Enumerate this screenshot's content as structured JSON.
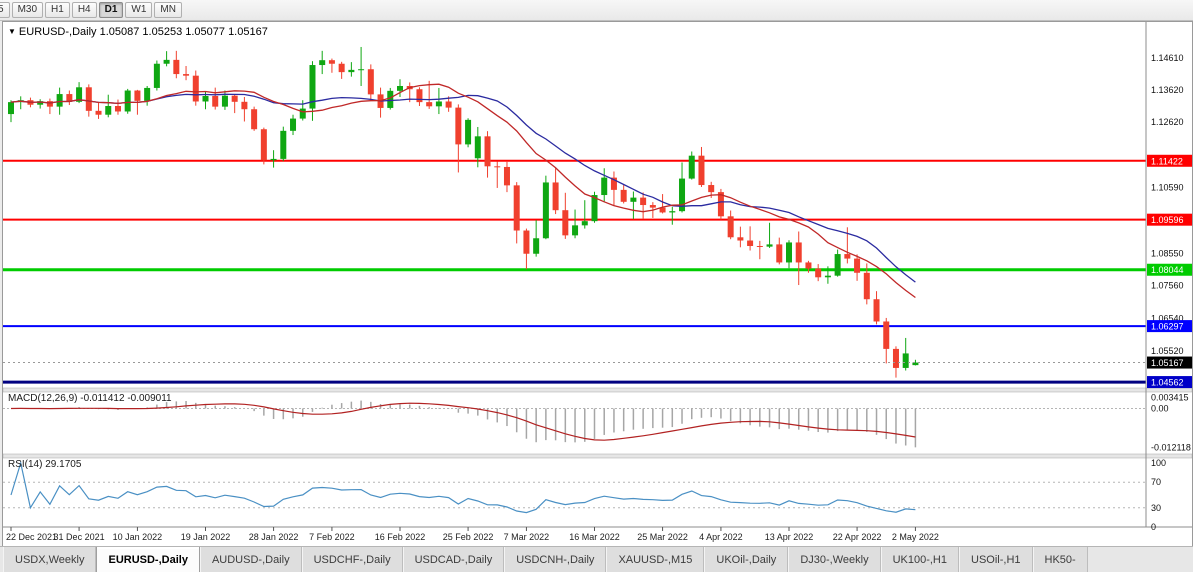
{
  "toolbar": {
    "timeframes": [
      "5",
      "M30",
      "H1",
      "H4",
      "D1",
      "W1",
      "MN"
    ],
    "active_timeframe": "D1"
  },
  "icons": {
    "dropdown": "▼"
  },
  "chart": {
    "symbol": "EURUSD-,Daily",
    "ohlc": "1.05087 1.05253 1.05077 1.05167"
  },
  "chart_data": {
    "type": "candlestick",
    "symbol": "EURUSD",
    "timeframe": "Daily",
    "ylim": [
      1.0444,
      1.156
    ],
    "y_ticks": [
      "1.14610",
      "1.13620",
      "1.12620",
      "1.10590",
      "1.08550",
      "1.07560",
      "1.06540",
      "1.05520"
    ],
    "x_ticks": [
      {
        "i": 0,
        "label": "22 Dec 2021"
      },
      {
        "i": 7,
        "label": "31 Dec 2021"
      },
      {
        "i": 13,
        "label": "10 Jan 2022"
      },
      {
        "i": 20,
        "label": "19 Jan 2022"
      },
      {
        "i": 27,
        "label": "28 Jan 2022"
      },
      {
        "i": 33,
        "label": "7 Feb 2022"
      },
      {
        "i": 40,
        "label": "16 Feb 2022"
      },
      {
        "i": 47,
        "label": "25 Feb 2022"
      },
      {
        "i": 53,
        "label": "7 Mar 2022"
      },
      {
        "i": 60,
        "label": "16 Mar 2022"
      },
      {
        "i": 67,
        "label": "25 Mar 2022"
      },
      {
        "i": 73,
        "label": "4 Apr 2022"
      },
      {
        "i": 80,
        "label": "13 Apr 2022"
      },
      {
        "i": 87,
        "label": "22 Apr 2022"
      },
      {
        "i": 93,
        "label": "2 May 2022"
      }
    ],
    "candles": [
      [
        1.1287,
        1.133,
        1.1262,
        1.1324
      ],
      [
        1.1324,
        1.1342,
        1.1302,
        1.133
      ],
      [
        1.133,
        1.1338,
        1.1308,
        1.1316
      ],
      [
        1.1316,
        1.1333,
        1.1304,
        1.1327
      ],
      [
        1.1327,
        1.1335,
        1.1287,
        1.131
      ],
      [
        1.131,
        1.1369,
        1.1285,
        1.1349
      ],
      [
        1.1349,
        1.136,
        1.1315,
        1.1325
      ],
      [
        1.1325,
        1.1386,
        1.1321,
        1.137
      ],
      [
        1.137,
        1.1379,
        1.1279,
        1.1297
      ],
      [
        1.1297,
        1.1323,
        1.1272,
        1.1285
      ],
      [
        1.1285,
        1.1347,
        1.1277,
        1.1312
      ],
      [
        1.1312,
        1.1332,
        1.1285,
        1.1295
      ],
      [
        1.1295,
        1.1365,
        1.1288,
        1.136
      ],
      [
        1.136,
        1.1362,
        1.1285,
        1.1328
      ],
      [
        1.1328,
        1.1374,
        1.1313,
        1.1368
      ],
      [
        1.1368,
        1.1453,
        1.136,
        1.1443
      ],
      [
        1.1443,
        1.1482,
        1.1435,
        1.1455
      ],
      [
        1.1455,
        1.1483,
        1.1398,
        1.1411
      ],
      [
        1.1411,
        1.1436,
        1.1392,
        1.1406
      ],
      [
        1.1406,
        1.1422,
        1.1313,
        1.1326
      ],
      [
        1.1326,
        1.1357,
        1.1302,
        1.1343
      ],
      [
        1.1343,
        1.1369,
        1.1301,
        1.131
      ],
      [
        1.131,
        1.136,
        1.13,
        1.1344
      ],
      [
        1.1344,
        1.1349,
        1.129,
        1.1325
      ],
      [
        1.1325,
        1.134,
        1.1264,
        1.1302
      ],
      [
        1.1302,
        1.131,
        1.1235,
        1.124
      ],
      [
        1.124,
        1.1245,
        1.1131,
        1.1144
      ],
      [
        1.1144,
        1.1175,
        1.1121,
        1.1148
      ],
      [
        1.1148,
        1.1248,
        1.1141,
        1.1235
      ],
      [
        1.1235,
        1.1285,
        1.1222,
        1.1273
      ],
      [
        1.1273,
        1.133,
        1.1267,
        1.1304
      ],
      [
        1.1304,
        1.1451,
        1.1266,
        1.1439
      ],
      [
        1.1439,
        1.1483,
        1.1411,
        1.1454
      ],
      [
        1.1454,
        1.1459,
        1.1415,
        1.1443
      ],
      [
        1.1443,
        1.1449,
        1.1396,
        1.1417
      ],
      [
        1.1417,
        1.1448,
        1.1403,
        1.1424
      ],
      [
        1.1424,
        1.1495,
        1.1374,
        1.1426
      ],
      [
        1.1426,
        1.1441,
        1.1329,
        1.1348
      ],
      [
        1.1348,
        1.1369,
        1.1276,
        1.1306
      ],
      [
        1.1306,
        1.1368,
        1.1301,
        1.1359
      ],
      [
        1.1359,
        1.1395,
        1.134,
        1.1374
      ],
      [
        1.1374,
        1.1385,
        1.1324,
        1.1364
      ],
      [
        1.1364,
        1.137,
        1.1312,
        1.1324
      ],
      [
        1.1324,
        1.139,
        1.1303,
        1.1311
      ],
      [
        1.1311,
        1.1368,
        1.1287,
        1.1326
      ],
      [
        1.1326,
        1.1342,
        1.1294,
        1.1307
      ],
      [
        1.1307,
        1.1317,
        1.1106,
        1.1193
      ],
      [
        1.1193,
        1.1274,
        1.1184,
        1.1269
      ],
      [
        1.115,
        1.1247,
        1.1122,
        1.1218
      ],
      [
        1.1218,
        1.1234,
        1.109,
        1.1125
      ],
      [
        1.1125,
        1.114,
        1.1058,
        1.1123
      ],
      [
        1.1123,
        1.1139,
        1.1045,
        1.1066
      ],
      [
        1.1066,
        1.1076,
        1.0886,
        1.0926
      ],
      [
        1.0926,
        1.0932,
        1.0806,
        1.0854
      ],
      [
        1.0854,
        1.0958,
        1.0845,
        1.0902
      ],
      [
        1.0902,
        1.1096,
        1.0899,
        1.1075
      ],
      [
        1.1075,
        1.1121,
        1.0977,
        1.0989
      ],
      [
        1.0989,
        1.1043,
        1.09,
        1.0911
      ],
      [
        1.0911,
        1.0991,
        1.0902,
        1.0942
      ],
      [
        1.0942,
        1.102,
        1.0932,
        1.0955
      ],
      [
        1.0955,
        1.1046,
        1.095,
        1.1036
      ],
      [
        1.1036,
        1.1119,
        1.1014,
        1.109
      ],
      [
        1.109,
        1.1109,
        1.1003,
        1.1052
      ],
      [
        1.1052,
        1.1069,
        1.101,
        1.1015
      ],
      [
        1.1015,
        1.1047,
        1.0962,
        1.1028
      ],
      [
        1.1028,
        1.1044,
        1.0963,
        1.1005
      ],
      [
        1.1005,
        1.1014,
        1.0965,
        1.0997
      ],
      [
        1.0997,
        1.1039,
        1.0979,
        1.0982
      ],
      [
        1.0982,
        1.0999,
        1.0944,
        1.0986
      ],
      [
        1.0986,
        1.1137,
        1.0982,
        1.1087
      ],
      [
        1.1087,
        1.1171,
        1.1084,
        1.1158
      ],
      [
        1.1158,
        1.1185,
        1.1061,
        1.1067
      ],
      [
        1.1067,
        1.1077,
        1.1027,
        1.1045
      ],
      [
        1.1045,
        1.1055,
        1.096,
        1.097
      ],
      [
        1.097,
        1.0988,
        1.0899,
        1.0905
      ],
      [
        1.0905,
        1.0938,
        1.0874,
        1.0895
      ],
      [
        1.0895,
        1.0939,
        1.0864,
        1.0878
      ],
      [
        1.0878,
        1.0894,
        1.0837,
        1.0876
      ],
      [
        1.0876,
        1.095,
        1.0872,
        1.0883
      ],
      [
        1.0883,
        1.0904,
        1.0821,
        1.0827
      ],
      [
        1.0827,
        1.0896,
        1.0809,
        1.0889
      ],
      [
        1.0889,
        1.0923,
        1.0757,
        1.0827
      ],
      [
        1.0827,
        1.0832,
        1.0795,
        1.0808
      ],
      [
        1.0808,
        1.0822,
        1.0769,
        1.0781
      ],
      [
        1.0781,
        1.0815,
        1.0761,
        1.0786
      ],
      [
        1.0786,
        1.0867,
        1.0783,
        1.0853
      ],
      [
        1.0853,
        1.0936,
        1.0824,
        1.0839
      ],
      [
        1.0839,
        1.0852,
        1.077,
        1.0795
      ],
      [
        1.0795,
        1.0824,
        1.0697,
        1.0713
      ],
      [
        1.0713,
        1.0738,
        1.0635,
        1.0644
      ],
      [
        1.0644,
        1.0655,
        1.0514,
        1.0559
      ],
      [
        1.0559,
        1.0567,
        1.047,
        1.05
      ],
      [
        1.05,
        1.0593,
        1.0492,
        1.0545
      ],
      [
        1.05087,
        1.05253,
        1.05077,
        1.05167
      ]
    ],
    "ma": [
      {
        "name": "ma-slow-blue",
        "period": 20,
        "color": "#2b2ba0"
      },
      {
        "name": "ma-fast-red",
        "period": 14,
        "color": "#c02828"
      }
    ],
    "hlines": [
      {
        "price": 1.11422,
        "label": "1.11422",
        "color": "#ff0000",
        "width": 2
      },
      {
        "price": 1.09596,
        "label": "1.09596",
        "color": "#ff0000",
        "width": 2
      },
      {
        "price": 1.08044,
        "label": "1.08044",
        "color": "#00cc00",
        "width": 3
      },
      {
        "price": 1.06297,
        "label": "1.06297",
        "color": "#0000ff",
        "width": 2
      },
      {
        "price": 1.04562,
        "label": "1.04562",
        "color": "#000080",
        "width": 3,
        "label_bg": "#0000c8"
      }
    ],
    "current_price": {
      "value": 1.05167,
      "label": "1.05167",
      "bg": "#000000"
    },
    "macd": {
      "label": "MACD(12,26,9)",
      "values_label": "-0.011412 -0.009011",
      "params": [
        12,
        26,
        9
      ],
      "range": [
        -0.0135,
        0.0045
      ],
      "y_ticks": [
        "0.003415",
        "0.00",
        "-0.012118"
      ],
      "bar_color": "#a6a6a6",
      "signal_color": "#b22222"
    },
    "rsi": {
      "label": "RSI(14)",
      "value_label": "29.1705",
      "period": 14,
      "levels": [
        70,
        30
      ],
      "y_ticks": [
        "100",
        "70",
        "30",
        "0"
      ],
      "color": "#4a90c4"
    }
  },
  "colors": {
    "bull": "#0fa712",
    "bear": "#f0402e",
    "axis_line": "#8c8c8c",
    "separator": "#e6e6e6",
    "tick_text": "#111111",
    "date_text": "#222222"
  },
  "tabs": {
    "active_index": 1,
    "items": [
      "USDX,Weekly",
      "EURUSD-,Daily",
      "AUDUSD-,Daily",
      "USDCHF-,Daily",
      "USDCAD-,Daily",
      "USDCNH-,Daily",
      "XAUUSD-,M15",
      "UKOil-,Daily",
      "DJ30-,Weekly",
      "UK100-,H1",
      "USOil-,H1",
      "HK50-"
    ]
  }
}
